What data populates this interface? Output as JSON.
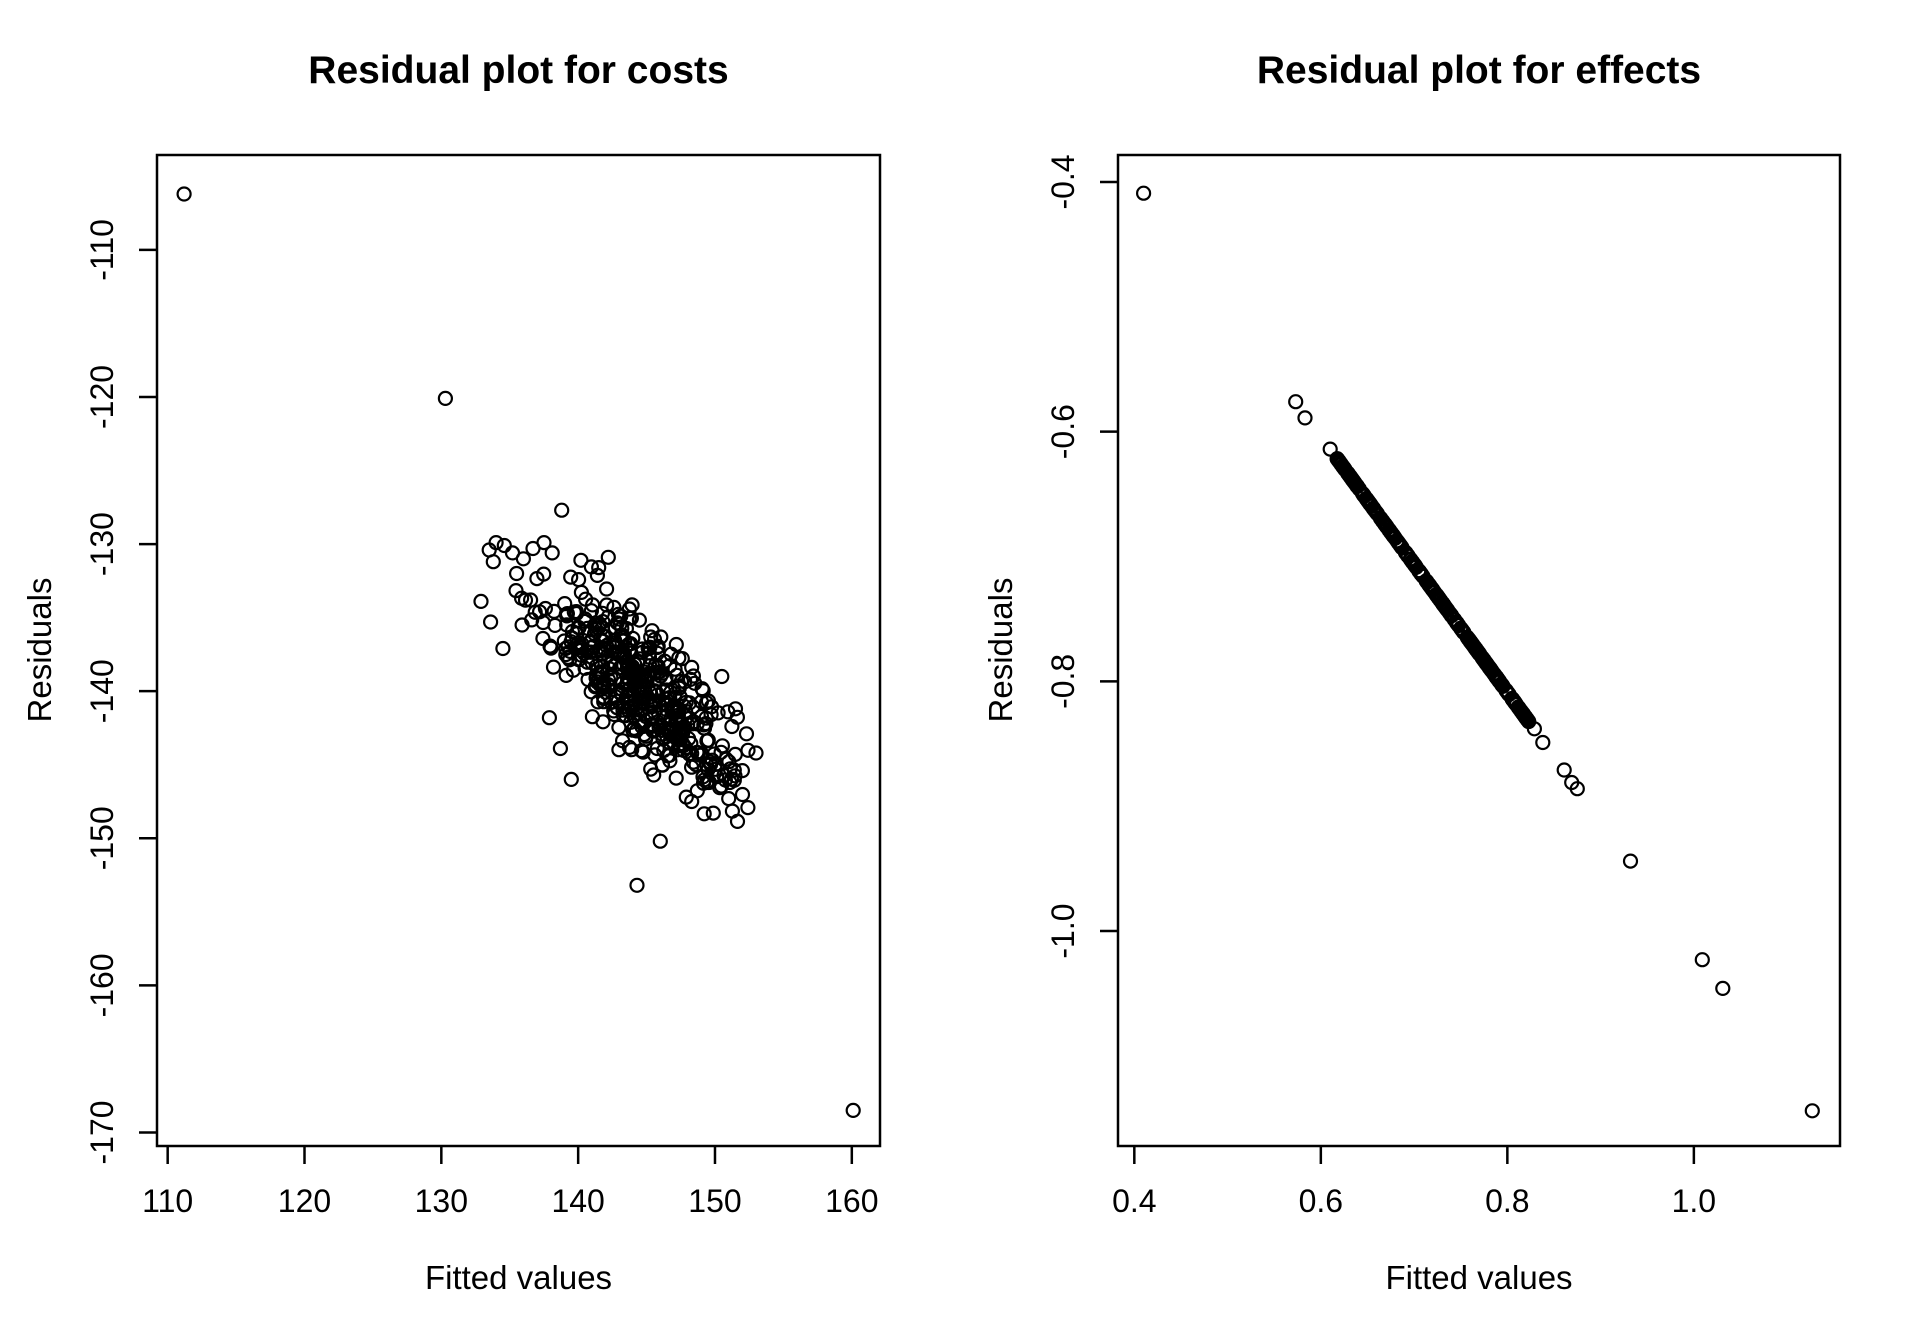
{
  "figure": {
    "background": "#ffffff",
    "ink_color": "#000000",
    "marker": "open-circle"
  },
  "chart_data": [
    {
      "type": "scatter",
      "panel": "left",
      "title": "Residual plot for costs",
      "xlabel": "Fitted values",
      "ylabel": "Residuals",
      "xlim": [
        109.22,
        162.06
      ],
      "ylim": [
        -170.92,
        -103.55
      ],
      "x_ticks": [
        110,
        120,
        130,
        140,
        150,
        160
      ],
      "y_ticks": [
        -170,
        -160,
        -150,
        -140,
        -130,
        -120,
        -110
      ],
      "x_tick_labels": [
        "110",
        "120",
        "130",
        "140",
        "150",
        "160"
      ],
      "y_tick_labels": [
        "-170",
        "-160",
        "-150",
        "-140",
        "-130",
        "-120",
        "-110"
      ],
      "grid": false,
      "legend": null,
      "outlier_points": [
        [
          111.2,
          -106.2
        ],
        [
          130.3,
          -120.1
        ],
        [
          138.8,
          -127.7
        ],
        [
          160.1,
          -168.5
        ],
        [
          144.3,
          -153.2
        ],
        [
          146.0,
          -150.2
        ],
        [
          145.3,
          -145.3
        ],
        [
          147.9,
          -147.2
        ],
        [
          148.3,
          -147.5
        ],
        [
          151.0,
          -147.3
        ],
        [
          149.6,
          -146.2
        ],
        [
          152.0,
          -145.4
        ],
        [
          133.5,
          -130.4
        ],
        [
          134.0,
          -129.9
        ],
        [
          134.6,
          -130.1
        ],
        [
          135.2,
          -130.6
        ],
        [
          133.8,
          -131.2
        ],
        [
          136.0,
          -131.0
        ],
        [
          136.7,
          -130.3
        ],
        [
          137.5,
          -129.9
        ],
        [
          138.1,
          -130.6
        ],
        [
          135.5,
          -132.0
        ],
        [
          132.9,
          -133.9
        ],
        [
          133.6,
          -135.3
        ],
        [
          134.5,
          -137.1
        ],
        [
          135.9,
          -135.5
        ],
        [
          142.2,
          -130.9
        ],
        [
          141.5,
          -131.6
        ],
        [
          140.2,
          -131.1
        ],
        [
          150.5,
          -139.0
        ],
        [
          151.5,
          -141.2
        ],
        [
          152.3,
          -142.9
        ],
        [
          153.0,
          -144.2
        ],
        [
          139.5,
          -146.0
        ],
        [
          138.7,
          -143.9
        ],
        [
          137.9,
          -141.8
        ]
      ],
      "cluster": {
        "n": 470,
        "center": [
          144.4,
          -139.6
        ],
        "sd_along": 4.8,
        "sd_perp": 1.6,
        "direction_deg": -45,
        "clip_sigma": 2.6,
        "seed": 42,
        "description": "dense elliptical cloud of ~500 open circles elongated along a negative-slope diagonal, x~135-153, y~-148 to -131"
      }
    },
    {
      "type": "scatter",
      "panel": "right",
      "title": "Residual plot for effects",
      "xlabel": "Fitted values",
      "ylabel": "Residuals",
      "xlim": [
        0.3825,
        1.1567
      ],
      "ylim": [
        -1.1722,
        -0.3784
      ],
      "x_ticks": [
        0.4,
        0.6,
        0.8,
        1.0
      ],
      "y_ticks": [
        -1.0,
        -0.8,
        -0.6,
        -0.4
      ],
      "x_tick_labels": [
        "0.4",
        "0.6",
        "0.8",
        "1.0"
      ],
      "y_tick_labels": [
        "-1.0",
        "-0.8",
        "-0.6",
        "-0.4"
      ],
      "grid": false,
      "legend": null,
      "line_relation": {
        "slope": -1.025,
        "intercept": 0.0113
      },
      "outlier_points": [
        [
          0.41,
          -0.409
        ],
        [
          0.573,
          -0.576
        ],
        [
          0.583,
          -0.589
        ],
        [
          0.61,
          -0.614
        ],
        [
          0.829,
          -0.838
        ],
        [
          0.838,
          -0.849
        ],
        [
          0.861,
          -0.871
        ],
        [
          0.869,
          -0.881
        ],
        [
          0.875,
          -0.886
        ],
        [
          0.932,
          -0.944
        ],
        [
          1.009,
          -1.023
        ],
        [
          1.031,
          -1.046
        ],
        [
          1.127,
          -1.144
        ]
      ],
      "dense_segment": {
        "n": 320,
        "x_min": 0.617,
        "x_max": 0.824,
        "seed": 7,
        "description": "solid-looking band of heavily overplotted circles lying exactly on the negative diagonal line"
      }
    }
  ]
}
